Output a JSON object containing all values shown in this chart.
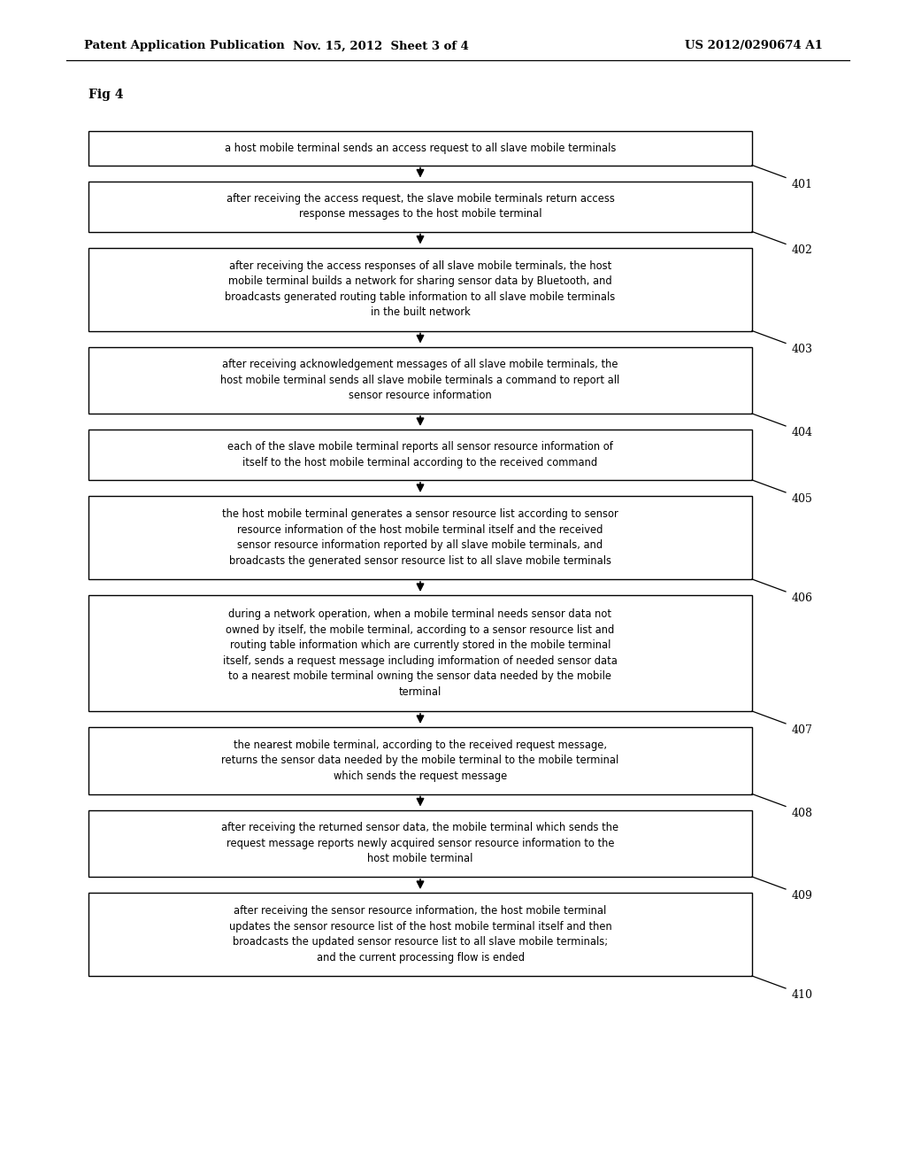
{
  "header_left": "Patent Application Publication",
  "header_mid": "Nov. 15, 2012  Sheet 3 of 4",
  "header_right": "US 2012/0290674 A1",
  "fig_label": "Fig 4",
  "background_color": "#ffffff",
  "box_color": "#ffffff",
  "box_edge_color": "#000000",
  "text_color": "#000000",
  "arrow_color": "#000000",
  "steps": [
    {
      "id": "401",
      "text": "a host mobile terminal sends an access request to all slave mobile terminals",
      "lines": 1
    },
    {
      "id": "402",
      "text": "after receiving the access request, the slave mobile terminals return access\nresponse messages to the host mobile terminal",
      "lines": 2
    },
    {
      "id": "403",
      "text": "after receiving the access responses of all slave mobile terminals, the host\nmobile terminal builds a network for sharing sensor data by Bluetooth, and\nbroadcasts generated routing table information to all slave mobile terminals\nin the built network",
      "lines": 4
    },
    {
      "id": "404",
      "text": "after receiving acknowledgement messages of all slave mobile terminals, the\nhost mobile terminal sends all slave mobile terminals a command to report all\nsensor resource information",
      "lines": 3
    },
    {
      "id": "405",
      "text": "each of the slave mobile terminal reports all sensor resource information of\nitself to the host mobile terminal according to the received command",
      "lines": 2
    },
    {
      "id": "406",
      "text": "the host mobile terminal generates a sensor resource list according to sensor\nresource information of the host mobile terminal itself and the received\nsensor resource information reported by all slave mobile terminals, and\nbroadcasts the generated sensor resource list to all slave mobile terminals",
      "lines": 4
    },
    {
      "id": "407",
      "text": "during a network operation, when a mobile terminal needs sensor data not\nowned by itself, the mobile terminal, according to a sensor resource list and\nrouting table information which are currently stored in the mobile terminal\nitself, sends a request message including imformation of needed sensor data\nto a nearest mobile terminal owning the sensor data needed by the mobile\nterminal",
      "lines": 6
    },
    {
      "id": "408",
      "text": "the nearest mobile terminal, according to the received request message,\nreturns the sensor data needed by the mobile terminal to the mobile terminal\nwhich sends the request message",
      "lines": 3
    },
    {
      "id": "409",
      "text": "after receiving the returned sensor data, the mobile terminal which sends the\nrequest message reports newly acquired sensor resource information to the\nhost mobile terminal",
      "lines": 3
    },
    {
      "id": "410",
      "text": "after receiving the sensor resource information, the host mobile terminal\nupdates the sensor resource list of the host mobile terminal itself and then\nbroadcasts the updated sensor resource list to all slave mobile terminals;\nand the current processing flow is ended",
      "lines": 4
    }
  ]
}
